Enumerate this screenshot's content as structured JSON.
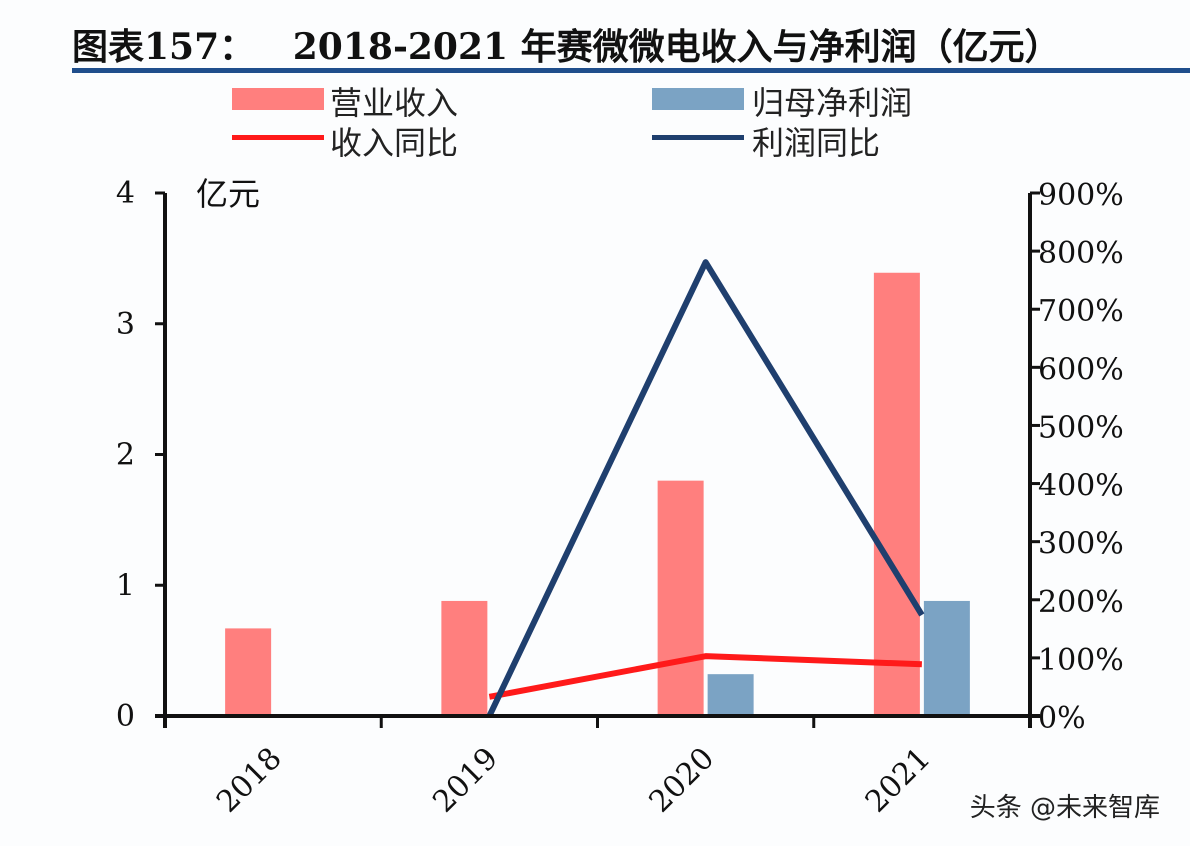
{
  "title": "图表157：   2018-2021 年赛微微电收入与净利润（亿元）",
  "watermark": "头条 @未来智库",
  "chart_data": {
    "type": "bar",
    "categories": [
      "2018",
      "2019",
      "2020",
      "2021"
    ],
    "left_axis": {
      "label": "亿元",
      "ylim": [
        0,
        4
      ],
      "ticks": [
        "0",
        "1",
        "2",
        "3",
        "4"
      ]
    },
    "right_axis": {
      "ylim": [
        0,
        900
      ],
      "ticks": [
        "0%",
        "100%",
        "200%",
        "300%",
        "400%",
        "500%",
        "600%",
        "700%",
        "800%",
        "900%"
      ]
    },
    "series": [
      {
        "name": "营业收入",
        "kind": "bar",
        "axis": "left",
        "color": "#ff7f7e",
        "values": [
          0.67,
          0.88,
          1.8,
          3.39
        ]
      },
      {
        "name": "归母净利润",
        "kind": "bar",
        "axis": "left",
        "color": "#7ba3c4",
        "values": [
          0.01,
          0.01,
          0.32,
          0.88
        ]
      },
      {
        "name": "收入同比",
        "kind": "line",
        "axis": "right",
        "color": "#ff1a1a",
        "values": [
          null,
          33,
          103,
          89
        ]
      },
      {
        "name": "利润同比",
        "kind": "line",
        "axis": "right",
        "color": "#1f3f6e",
        "values": [
          null,
          0,
          781,
          174
        ]
      }
    ],
    "grid": false,
    "legend": "top"
  }
}
